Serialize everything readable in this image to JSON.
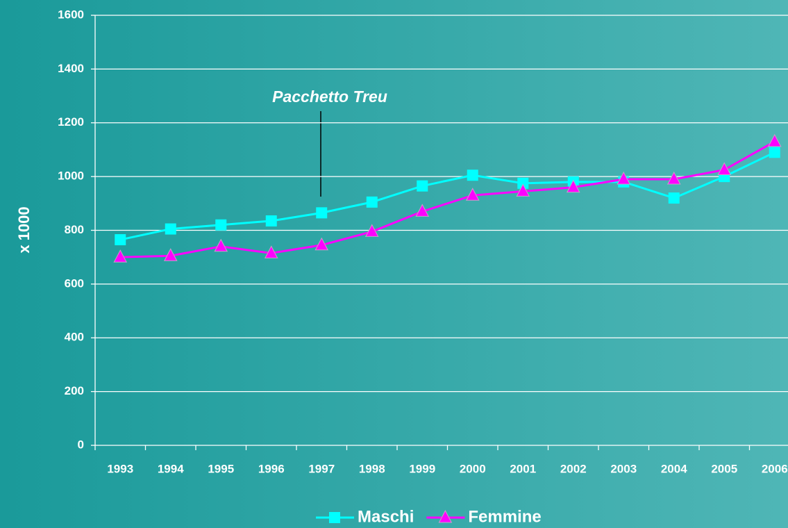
{
  "chart_data": {
    "type": "line",
    "y_label": "x 1000",
    "annotation": "Pacchetto Treu",
    "categories": [
      "1993",
      "1994",
      "1995",
      "1996",
      "1997",
      "1998",
      "1999",
      "2000",
      "2001",
      "2002",
      "2003",
      "2004",
      "2005",
      "2006"
    ],
    "series": [
      {
        "name": "Maschi",
        "color": "#00ffff",
        "marker": "square",
        "values": [
          765,
          805,
          820,
          835,
          865,
          905,
          965,
          1005,
          975,
          980,
          980,
          920,
          1000,
          1090
        ]
      },
      {
        "name": "Femmine",
        "color": "#ff00ff",
        "marker": "triangle",
        "values": [
          700,
          705,
          740,
          715,
          745,
          795,
          870,
          930,
          945,
          960,
          990,
          990,
          1025,
          1130
        ]
      }
    ],
    "ylim": [
      0,
      1600
    ],
    "yticks": [
      0,
      200,
      400,
      600,
      800,
      1000,
      1200,
      1400,
      1600
    ],
    "grid": true,
    "legend": "bottom"
  }
}
